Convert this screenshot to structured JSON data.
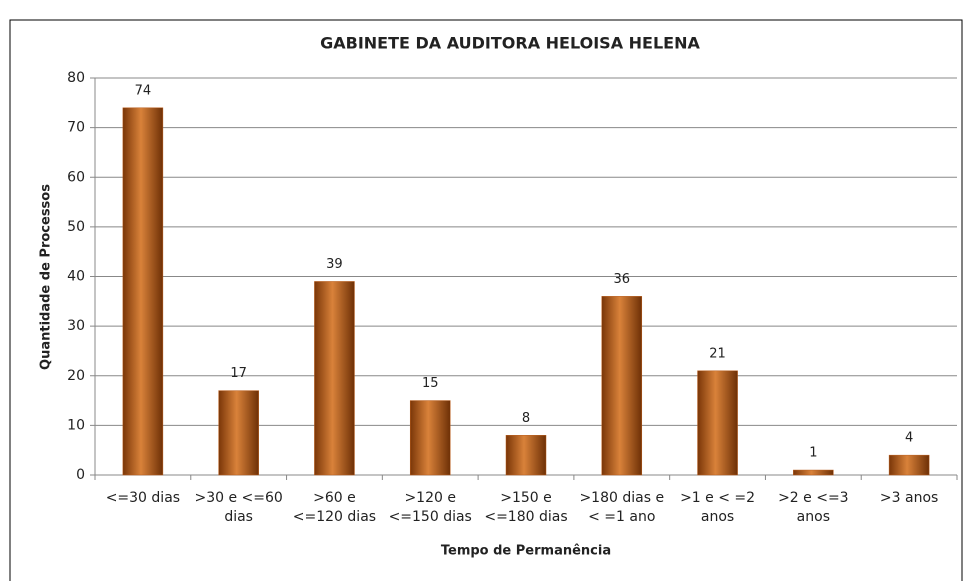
{
  "chart_data": {
    "type": "bar",
    "title": "GABINETE DA AUDITORA HELOISA HELENA",
    "x_label": "Tempo de Permanência",
    "y_label": "Quantidade de Processos",
    "categories": [
      "<=30 dias",
      ">30 e <=60\ndias",
      ">60 e\n<=120 dias",
      ">120 e\n<=150 dias",
      ">150 e\n<=180 dias",
      ">180 dias e\n< =1 ano",
      ">1 e < =2\nanos",
      ">2 e <=3\nanos",
      ">3 anos"
    ],
    "values": [
      74,
      17,
      39,
      15,
      8,
      36,
      21,
      1,
      4
    ],
    "color": "#b85a18",
    "ylim": [
      0,
      80
    ],
    "yticks": [
      0,
      10,
      20,
      30,
      40,
      50,
      60,
      70,
      80
    ],
    "grid": true
  }
}
